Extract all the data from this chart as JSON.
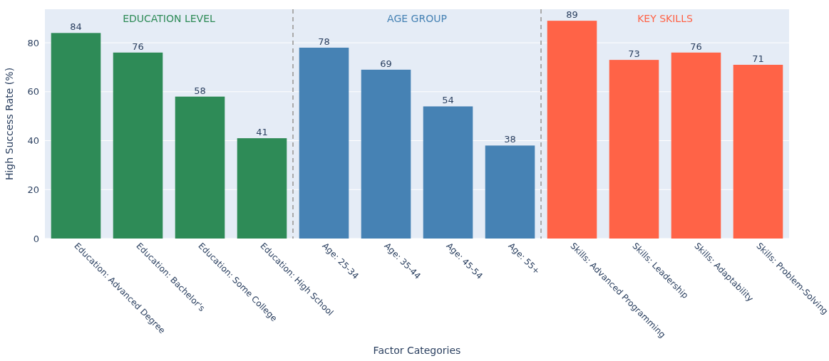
{
  "chart_data": {
    "type": "bar",
    "xlabel": "Factor Categories",
    "ylabel": "High Success Rate (%)",
    "categories": [
      "Education: Advanced Degree",
      "Education: Bachelor's",
      "Education: Some College",
      "Education: High School",
      "Age: 25-34",
      "Age: 35-44",
      "Age: 45-54",
      "Age: 55+",
      "Skills: Advanced Programming",
      "Skills: Leadership",
      "Skills: Adaptability",
      "Skills: Problem-Solving"
    ],
    "values": [
      84,
      76,
      58,
      41,
      78,
      69,
      54,
      38,
      89,
      73,
      76,
      71
    ],
    "colors": [
      "#2e8b57",
      "#2e8b57",
      "#2e8b57",
      "#2e8b57",
      "#4682b4",
      "#4682b4",
      "#4682b4",
      "#4682b4",
      "#ff6347",
      "#ff6347",
      "#ff6347",
      "#ff6347"
    ],
    "data_labels": true,
    "ylim": [
      0,
      93.7
    ],
    "yticks": [
      0,
      20,
      40,
      60,
      80
    ],
    "grid": "y",
    "annotations": [
      "EDUCATION LEVEL",
      "AGE GROUP",
      "KEY SKILLS"
    ]
  }
}
